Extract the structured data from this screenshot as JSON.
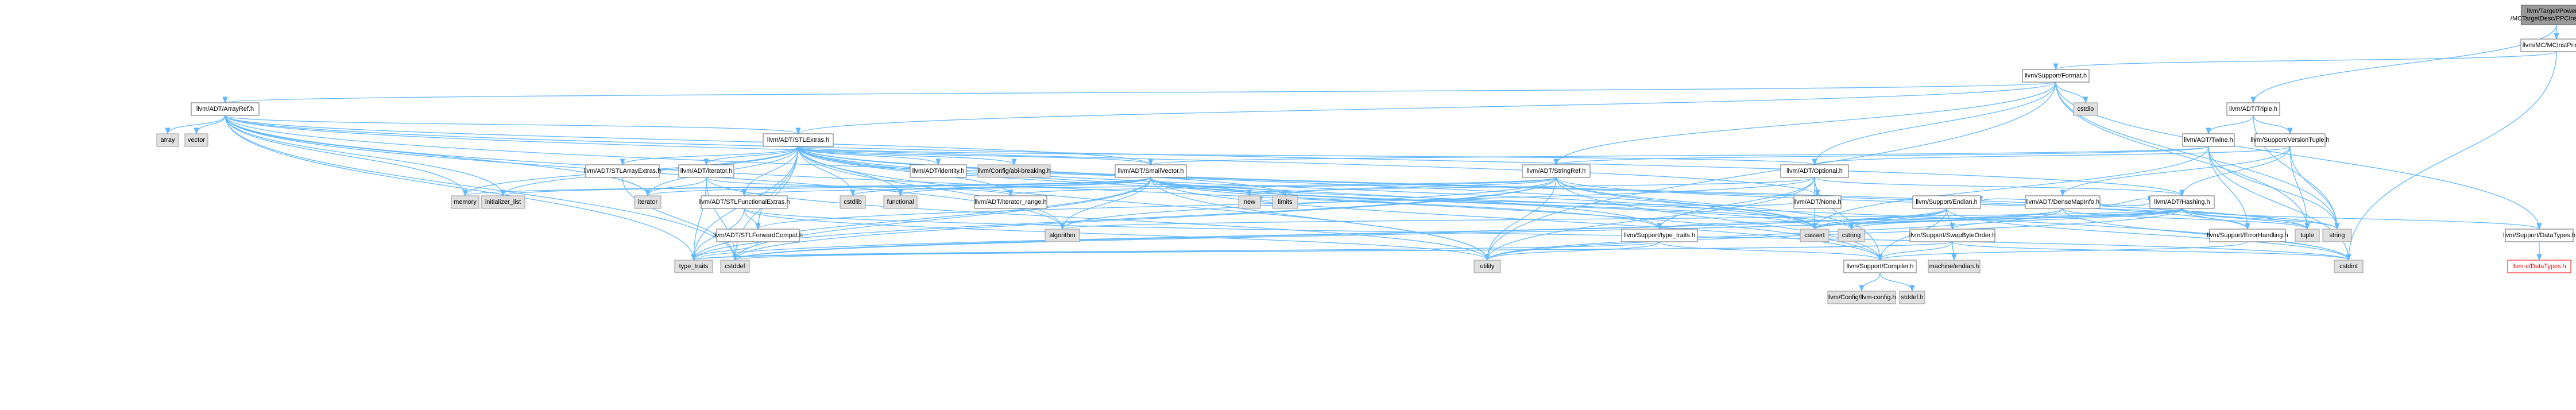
{
  "colors": {
    "edge": "#63b8ff",
    "box_white_fill": "#ffffff",
    "box_white_stroke": "#666666",
    "box_grey_fill": "#e0e0e0",
    "box_grey_stroke": "#999999",
    "box_root_fill": "#999999",
    "box_root_stroke": "#666666",
    "box_red_stroke": "#ff0000"
  },
  "nodes": [
    {
      "id": "root",
      "label": [
        "llvm/Target/PowerPC",
        "/MCTargetDesc/PPCInstPrinter.h"
      ],
      "style": "root"
    },
    {
      "id": "mcinstprinter",
      "label": "llvm/MC/MCInstPrinter.h",
      "style": "white"
    },
    {
      "id": "format",
      "label": "llvm/Support/Format.h",
      "style": "white"
    },
    {
      "id": "triple",
      "label": "llvm/ADT/Triple.h",
      "style": "white"
    },
    {
      "id": "arrayref",
      "label": "llvm/ADT/ArrayRef.h",
      "style": "white"
    },
    {
      "id": "cstdio",
      "label": "cstdio",
      "style": "grey"
    },
    {
      "id": "twine",
      "label": "llvm/ADT/Twine.h",
      "style": "white"
    },
    {
      "id": "versiontuple",
      "label": "llvm/Support/VersionTuple.h",
      "style": "white"
    },
    {
      "id": "array",
      "label": "array",
      "style": "grey"
    },
    {
      "id": "vector",
      "label": "vector",
      "style": "grey"
    },
    {
      "id": "stlextras",
      "label": "llvm/ADT/STLExtras.h",
      "style": "white"
    },
    {
      "id": "stlarrayextras",
      "label": "llvm/ADT/STLArrayExtras.h",
      "style": "white"
    },
    {
      "id": "adtiterator",
      "label": "llvm/ADT/iterator.h",
      "style": "white"
    },
    {
      "id": "identity",
      "label": "llvm/ADT/identity.h",
      "style": "white"
    },
    {
      "id": "abibreaking",
      "label": "llvm/Config/abi-breaking.h",
      "style": "grey"
    },
    {
      "id": "smallvector",
      "label": "llvm/ADT/SmallVector.h",
      "style": "white"
    },
    {
      "id": "stringref",
      "label": "llvm/ADT/StringRef.h",
      "style": "white"
    },
    {
      "id": "optional",
      "label": "llvm/ADT/Optional.h",
      "style": "white"
    },
    {
      "id": "memory",
      "label": "memory",
      "style": "grey"
    },
    {
      "id": "initlist",
      "label": "initializer_list",
      "style": "grey"
    },
    {
      "id": "iteratorstd",
      "label": "iterator",
      "style": "grey"
    },
    {
      "id": "cstdlib",
      "label": "cstdlib",
      "style": "grey"
    },
    {
      "id": "functional",
      "label": "functional",
      "style": "grey"
    },
    {
      "id": "stlfunctional",
      "label": "llvm/ADT/STLFunctionalExtras.h",
      "style": "white"
    },
    {
      "id": "iterrange",
      "label": "llvm/ADT/iterator_range.h",
      "style": "white"
    },
    {
      "id": "new",
      "label": "new",
      "style": "grey"
    },
    {
      "id": "limits",
      "label": "limits",
      "style": "grey"
    },
    {
      "id": "none",
      "label": "llvm/ADT/None.h",
      "style": "white"
    },
    {
      "id": "endian",
      "label": "llvm/Support/Endian.h",
      "style": "white"
    },
    {
      "id": "densemapinfo",
      "label": "llvm/ADT/DenseMapInfo.h",
      "style": "white"
    },
    {
      "id": "hashing",
      "label": "llvm/ADT/Hashing.h",
      "style": "white"
    },
    {
      "id": "stlforward",
      "label": "llvm/ADT/STLForwardCompat.h",
      "style": "white"
    },
    {
      "id": "algorithm",
      "label": "algorithm",
      "style": "grey"
    },
    {
      "id": "typetraitsllvm",
      "label": "llvm/Support/type_traits.h",
      "style": "white"
    },
    {
      "id": "cassert",
      "label": "cassert",
      "style": "grey"
    },
    {
      "id": "cstring",
      "label": "cstring",
      "style": "grey"
    },
    {
      "id": "swapbyteorder",
      "label": "llvm/Support/SwapByteOrder.h",
      "style": "white"
    },
    {
      "id": "errorhandling",
      "label": "llvm/Support/ErrorHandling.h",
      "style": "white"
    },
    {
      "id": "tuple",
      "label": "tuple",
      "style": "grey"
    },
    {
      "id": "string",
      "label": "string",
      "style": "grey"
    },
    {
      "id": "datatypes",
      "label": "llvm/Support/DataTypes.h",
      "style": "white"
    },
    {
      "id": "typetraits",
      "label": "type_traits",
      "style": "grey"
    },
    {
      "id": "cstddef",
      "label": "cstddef",
      "style": "grey"
    },
    {
      "id": "utility",
      "label": "utility",
      "style": "grey"
    },
    {
      "id": "compiler",
      "label": "llvm/Support/Compiler.h",
      "style": "white"
    },
    {
      "id": "machineendian",
      "label": "machine/endian.h",
      "style": "grey"
    },
    {
      "id": "cstdint",
      "label": "cstdint",
      "style": "grey"
    },
    {
      "id": "cdatatypes",
      "label": "llvm-c/DataTypes.h",
      "style": "red"
    },
    {
      "id": "llvmconfig",
      "label": "llvm/Config/llvm-config.h",
      "style": "grey"
    },
    {
      "id": "stddef",
      "label": "stddef.h",
      "style": "grey"
    }
  ],
  "edges": [
    [
      "root",
      "mcinstprinter"
    ],
    [
      "root",
      "triple"
    ],
    [
      "mcinstprinter",
      "format"
    ],
    [
      "mcinstprinter",
      "cstdint"
    ],
    [
      "format",
      "arrayref"
    ],
    [
      "format",
      "stlextras"
    ],
    [
      "format",
      "stringref"
    ],
    [
      "format",
      "cstdio"
    ],
    [
      "format",
      "string"
    ],
    [
      "format",
      "tuple"
    ],
    [
      "format",
      "utility"
    ],
    [
      "format",
      "optional"
    ],
    [
      "format",
      "datatypes"
    ],
    [
      "triple",
      "twine"
    ],
    [
      "triple",
      "versiontuple"
    ],
    [
      "triple",
      "string"
    ],
    [
      "arrayref",
      "array"
    ],
    [
      "arrayref",
      "vector"
    ],
    [
      "arrayref",
      "stlextras"
    ],
    [
      "arrayref",
      "smallvector"
    ],
    [
      "arrayref",
      "hashing"
    ],
    [
      "arrayref",
      "none"
    ],
    [
      "arrayref",
      "compiler"
    ],
    [
      "arrayref",
      "algorithm"
    ],
    [
      "arrayref",
      "cassert"
    ],
    [
      "arrayref",
      "cstddef"
    ],
    [
      "arrayref",
      "initlist"
    ],
    [
      "arrayref",
      "iteratorstd"
    ],
    [
      "arrayref",
      "memory"
    ],
    [
      "arrayref",
      "typetraits"
    ],
    [
      "twine",
      "smallvector"
    ],
    [
      "twine",
      "stringref"
    ],
    [
      "twine",
      "errorhandling"
    ],
    [
      "twine",
      "cassert"
    ],
    [
      "twine",
      "cstdint"
    ],
    [
      "twine",
      "string"
    ],
    [
      "versiontuple",
      "densemapinfo"
    ],
    [
      "versiontuple",
      "hashing"
    ],
    [
      "versiontuple",
      "optional"
    ],
    [
      "versiontuple",
      "string"
    ],
    [
      "versiontuple",
      "tuple"
    ],
    [
      "stlextras",
      "stlarrayextras"
    ],
    [
      "stlextras",
      "adtiterator"
    ],
    [
      "stlextras",
      "identity"
    ],
    [
      "stlextras",
      "abibreaking"
    ],
    [
      "stlextras",
      "optional"
    ],
    [
      "stlextras",
      "smallvector"
    ],
    [
      "stlextras",
      "stlforward"
    ],
    [
      "stlextras",
      "stlfunctional"
    ],
    [
      "stlextras",
      "iterrange"
    ],
    [
      "stlextras",
      "typetraitsllvm"
    ],
    [
      "stlextras",
      "errorhandling"
    ],
    [
      "stlextras",
      "algorithm"
    ],
    [
      "stlextras",
      "cassert"
    ],
    [
      "stlextras",
      "cstddef"
    ],
    [
      "stlextras",
      "cstdint"
    ],
    [
      "stlextras",
      "cstdlib"
    ],
    [
      "stlextras",
      "functional"
    ],
    [
      "stlextras",
      "initlist"
    ],
    [
      "stlextras",
      "iteratorstd"
    ],
    [
      "stlextras",
      "limits"
    ],
    [
      "stlextras",
      "memory"
    ],
    [
      "stlextras",
      "tuple"
    ],
    [
      "stlextras",
      "typetraits"
    ],
    [
      "stlextras",
      "utility"
    ],
    [
      "stlarrayextras",
      "cstddef"
    ],
    [
      "adtiterator",
      "iterrange"
    ],
    [
      "adtiterator",
      "cstddef"
    ],
    [
      "adtiterator",
      "iteratorstd"
    ],
    [
      "adtiterator",
      "typetraits"
    ],
    [
      "adtiterator",
      "utility"
    ],
    [
      "smallvector",
      "compiler"
    ],
    [
      "smallvector",
      "typetraitsllvm"
    ],
    [
      "smallvector",
      "algorithm"
    ],
    [
      "smallvector",
      "cassert"
    ],
    [
      "smallvector",
      "cstddef"
    ],
    [
      "smallvector",
      "cstdlib"
    ],
    [
      "smallvector",
      "cstring"
    ],
    [
      "smallvector",
      "functional"
    ],
    [
      "smallvector",
      "initlist"
    ],
    [
      "smallvector",
      "iteratorstd"
    ],
    [
      "smallvector",
      "limits"
    ],
    [
      "smallvector",
      "memory"
    ],
    [
      "smallvector",
      "new"
    ],
    [
      "smallvector",
      "typetraits"
    ],
    [
      "smallvector",
      "utility"
    ],
    [
      "stringref",
      "stlfunctional"
    ],
    [
      "stringref",
      "iterrange"
    ],
    [
      "stringref",
      "compiler"
    ],
    [
      "stringref",
      "algorithm"
    ],
    [
      "stringref",
      "cassert"
    ],
    [
      "stringref",
      "cstddef"
    ],
    [
      "stringref",
      "cstring"
    ],
    [
      "stringref",
      "limits"
    ],
    [
      "stringref",
      "string"
    ],
    [
      "stringref",
      "typetraits"
    ],
    [
      "stringref",
      "utility"
    ],
    [
      "optional",
      "hashing"
    ],
    [
      "optional",
      "none"
    ],
    [
      "optional",
      "stlforward"
    ],
    [
      "optional",
      "compiler"
    ],
    [
      "optional",
      "typetraitsllvm"
    ],
    [
      "optional",
      "cassert"
    ],
    [
      "optional",
      "new"
    ],
    [
      "optional",
      "utility"
    ],
    [
      "stlfunctional",
      "stlforward"
    ],
    [
      "stlfunctional",
      "cstdint"
    ],
    [
      "stlfunctional",
      "typetraits"
    ],
    [
      "stlfunctional",
      "utility"
    ],
    [
      "none",
      "new"
    ],
    [
      "endian",
      "compiler"
    ],
    [
      "endian",
      "swapbyteorder"
    ],
    [
      "endian",
      "cassert"
    ],
    [
      "endian",
      "cstddef"
    ],
    [
      "endian",
      "cstdint"
    ],
    [
      "endian",
      "cstring"
    ],
    [
      "endian",
      "typetraits"
    ],
    [
      "densemapinfo",
      "hashing"
    ],
    [
      "densemapinfo",
      "cassert"
    ],
    [
      "densemapinfo",
      "cstddef"
    ],
    [
      "densemapinfo",
      "cstdint"
    ],
    [
      "densemapinfo",
      "tuple"
    ],
    [
      "densemapinfo",
      "utility"
    ],
    [
      "hashing",
      "errorhandling"
    ],
    [
      "hashing",
      "swapbyteorder"
    ],
    [
      "hashing",
      "typetraitsllvm"
    ],
    [
      "hashing",
      "algorithm"
    ],
    [
      "hashing",
      "cassert"
    ],
    [
      "hashing",
      "cstring"
    ],
    [
      "hashing",
      "string"
    ],
    [
      "hashing",
      "tuple"
    ],
    [
      "hashing",
      "utility"
    ],
    [
      "hashing",
      "datatypes"
    ],
    [
      "hashing",
      "endian"
    ],
    [
      "stlforward",
      "typetraits"
    ],
    [
      "typetraitsllvm",
      "compiler"
    ],
    [
      "typetraitsllvm",
      "typetraits"
    ],
    [
      "typetraitsllvm",
      "utility"
    ],
    [
      "swapbyteorder",
      "compiler"
    ],
    [
      "swapbyteorder",
      "cstddef"
    ],
    [
      "swapbyteorder",
      "cstdint"
    ],
    [
      "swapbyteorder",
      "typetraits"
    ],
    [
      "swapbyteorder",
      "machineendian"
    ],
    [
      "errorhandling",
      "compiler"
    ],
    [
      "datatypes",
      "cdatatypes"
    ],
    [
      "compiler",
      "llvmconfig"
    ],
    [
      "compiler",
      "stddef"
    ]
  ]
}
